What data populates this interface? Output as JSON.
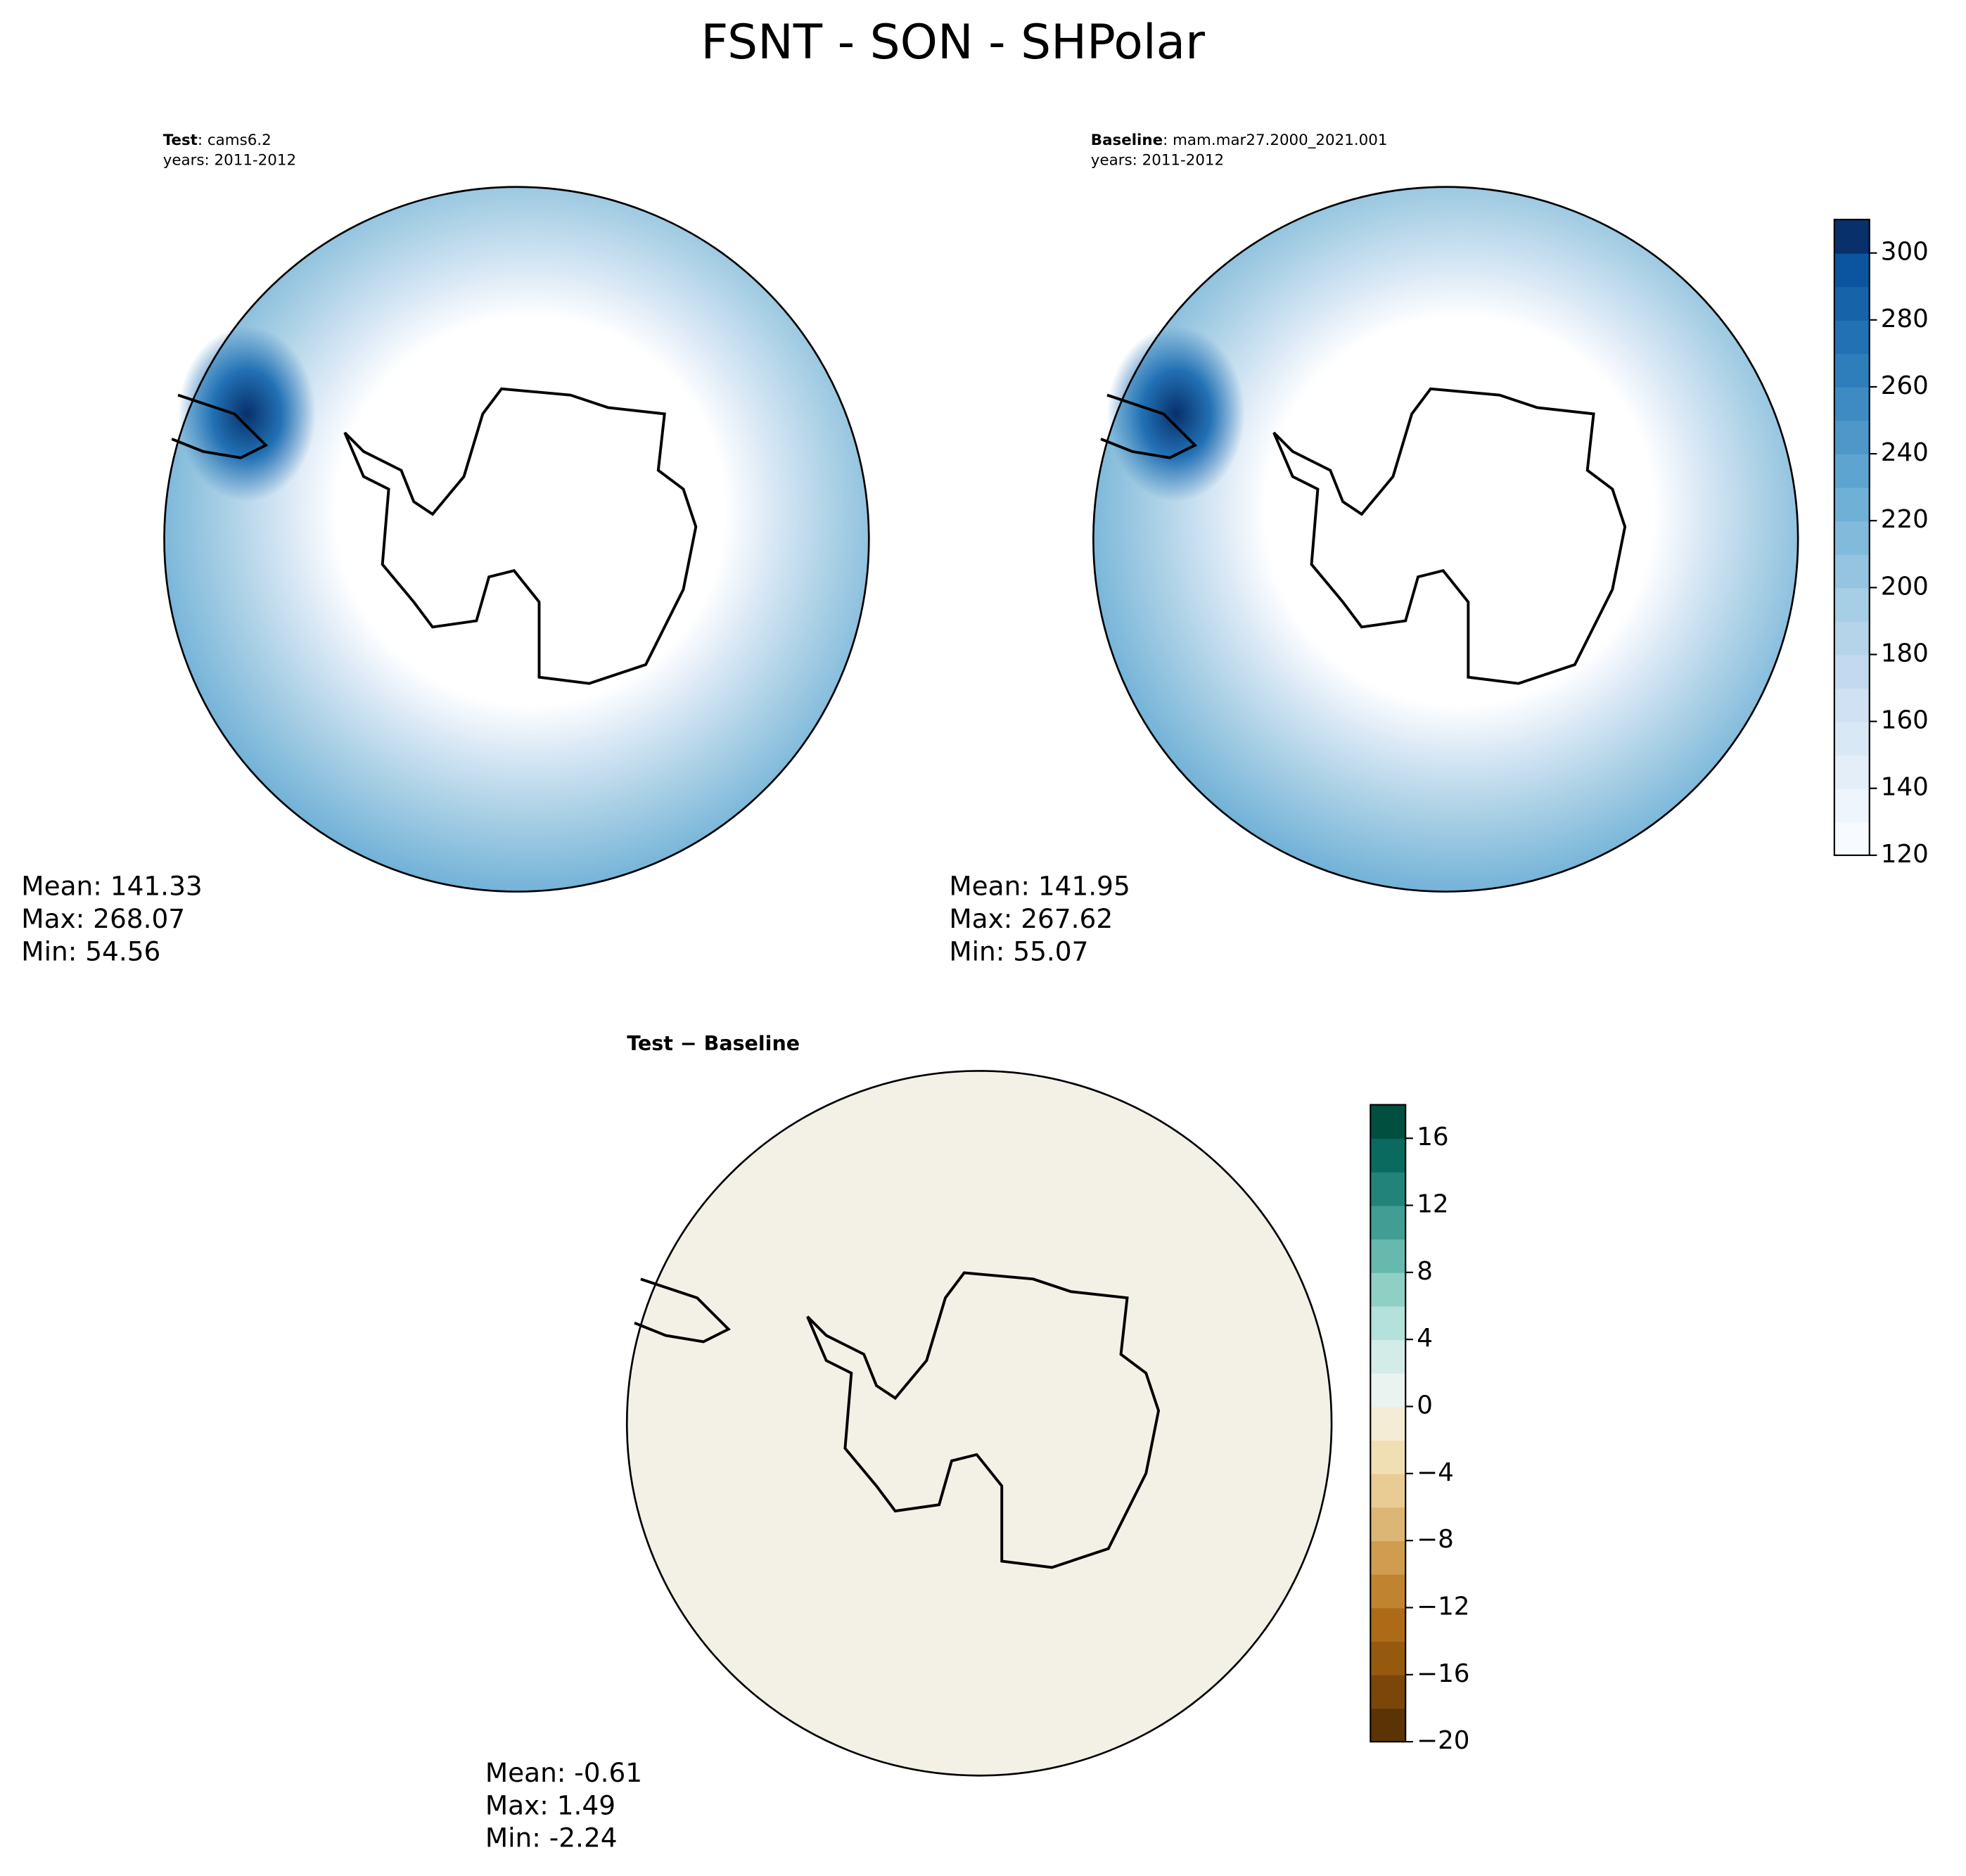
{
  "title": "FSNT - SON - SHPolar",
  "panels": [
    {
      "label_bold": "Test",
      "label": ": cams6.2",
      "years": "years: 2011-2012",
      "stats": [
        "Mean: 141.33",
        "Max: 268.07",
        "Min: 54.56"
      ]
    },
    {
      "label_bold": "Baseline",
      "label": ": mam.mar27.2000_2021.001",
      "years": "years: 2011-2012",
      "stats": [
        "Mean: 141.95",
        "Max: 267.62",
        "Min: 55.07"
      ]
    },
    {
      "label_bold": "Test − Baseline",
      "stats": [
        "Mean: -0.61",
        "Max:  1.49",
        "Min: -2.24"
      ]
    }
  ],
  "colorbars": [
    {
      "lim": [
        120,
        310
      ],
      "ticks": [
        120,
        140,
        160,
        180,
        200,
        220,
        240,
        260,
        280,
        300
      ],
      "colors": [
        "#f7fbff",
        "#eef5fc",
        "#e3eef9",
        "#d9e8f5",
        "#cfe1f2",
        "#c3daee",
        "#b5d4e9",
        "#a6cee4",
        "#94c4df",
        "#82badb",
        "#6fb0d7",
        "#5ea4d1",
        "#4e97c9",
        "#3e8bc3",
        "#2f7ebc",
        "#2271b5",
        "#1763aa",
        "#0b559f",
        "#08306b"
      ]
    },
    {
      "lim": [
        -20,
        18
      ],
      "ticks": [
        {
          "value": -20,
          "label": "−20"
        },
        {
          "value": -16,
          "label": "−16"
        },
        {
          "value": -12,
          "label": "−12"
        },
        {
          "value": -8,
          "label": "−8"
        },
        {
          "value": -4,
          "label": "−4"
        },
        0,
        4,
        8,
        12,
        16
      ],
      "colors": [
        "#5a3405",
        "#7a4609",
        "#955a0e",
        "#ad6b18",
        "#c08431",
        "#cf9c50",
        "#dcb674",
        "#e8cc94",
        "#f1dfb4",
        "#f4ecd5",
        "#ebf3f1",
        "#d3ece8",
        "#b4e1da",
        "#8fd0c5",
        "#67b8ad",
        "#429d94",
        "#22837a",
        "#0b6a60",
        "#01503f"
      ]
    }
  ]
}
